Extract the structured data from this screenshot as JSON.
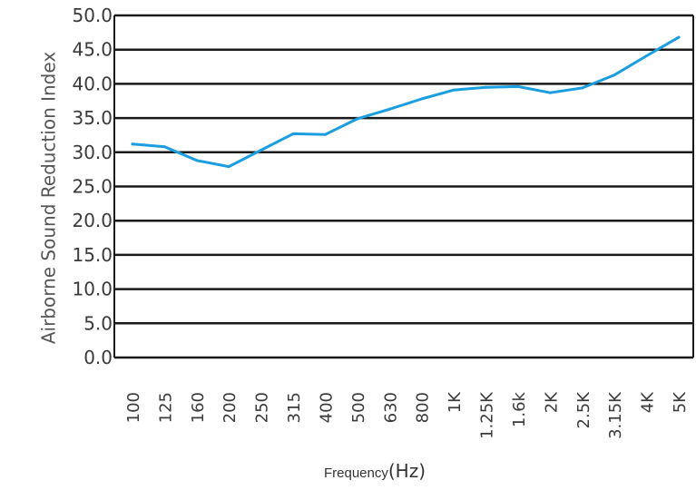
{
  "chart_data": {
    "type": "line",
    "xlabel": "Frequency",
    "xlabel_unit": "(Hz)",
    "ylabel": "Airborne Sound Reduction Index",
    "ylim": [
      0,
      50
    ],
    "yticks": [
      "0.0",
      "5.0",
      "10.0",
      "15.0",
      "20.0",
      "25.0",
      "30.0",
      "35.0",
      "40.0",
      "45.0",
      "50.0"
    ],
    "grid": true,
    "categories": [
      "100",
      "125",
      "160",
      "200",
      "250",
      "315",
      "400",
      "500",
      "630",
      "800",
      "1K",
      "1.25K",
      "1.6k",
      "2K",
      "2.5K",
      "3.15K",
      "4K",
      "5K"
    ],
    "series": [
      {
        "color": "#1a9ee0",
        "values": [
          31.2,
          30.8,
          28.8,
          27.9,
          30.3,
          32.7,
          32.6,
          34.9,
          36.3,
          37.8,
          39.1,
          39.5,
          39.6,
          38.7,
          39.4,
          41.3,
          44.1,
          46.8
        ]
      }
    ]
  }
}
